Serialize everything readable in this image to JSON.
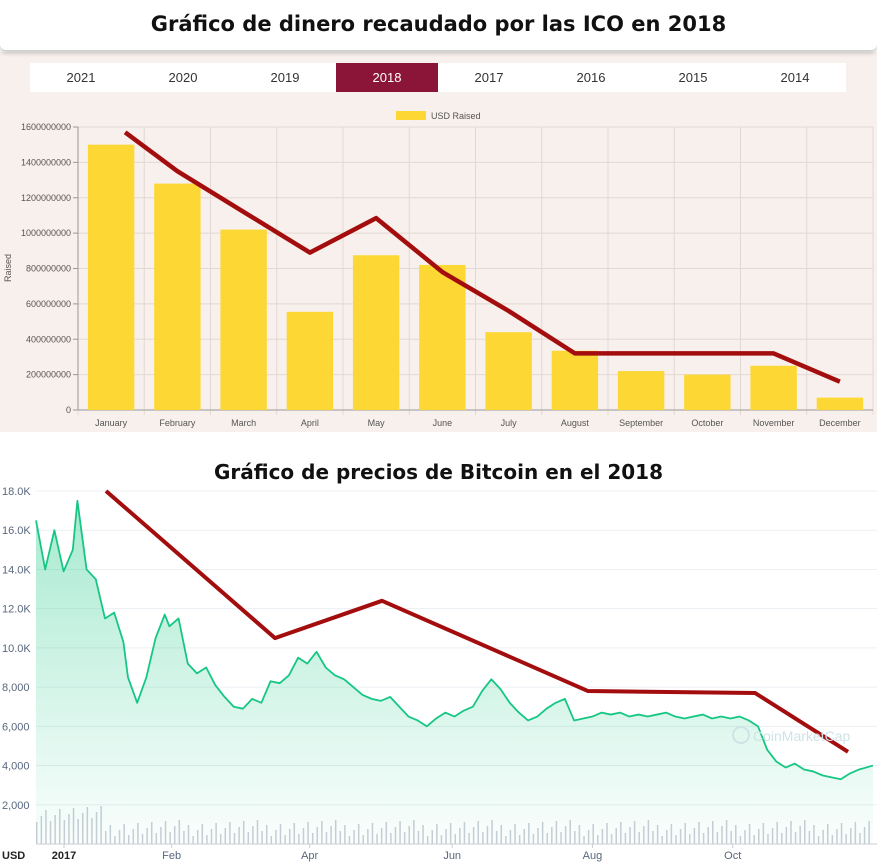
{
  "chart_data": [
    {
      "type": "bar",
      "title": "Gráfico de dinero recaudado por las ICO en 2018",
      "tabs": [
        "2021",
        "2020",
        "2019",
        "2018",
        "2017",
        "2016",
        "2015",
        "2014"
      ],
      "selected_tab": "2018",
      "legend": "USD Raised",
      "legend_position": "top",
      "ylabel": "Raised",
      "categories": [
        "January",
        "February",
        "March",
        "April",
        "May",
        "June",
        "July",
        "August",
        "September",
        "October",
        "November",
        "December"
      ],
      "series": [
        {
          "name": "USD Raised",
          "values": [
            1500000000,
            1280000000,
            1020000000,
            555000000,
            875000000,
            820000000,
            440000000,
            335000000,
            220000000,
            200000000,
            250000000,
            70000000
          ],
          "color": "#fdd835"
        }
      ],
      "trend_line": [
        1570000000,
        1350000000,
        1120000000,
        890000000,
        1085000000,
        780000000,
        560000000,
        320000000,
        320000000,
        320000000,
        320000000,
        160000000
      ],
      "trend_color": "#a30d0d",
      "ylim": [
        0,
        1600000000
      ],
      "yticks": [
        "0",
        "200000000",
        "400000000",
        "600000000",
        "800000000",
        "1000000000",
        "1200000000",
        "1400000000",
        "1600000000"
      ],
      "grid": true,
      "background": "#f8f0ec"
    },
    {
      "type": "line",
      "title": "Gráfico de precios de Bitcoin en el 2018",
      "currency": "USD",
      "x_ticks": [
        "2017",
        "Feb",
        "Apr",
        "Jun",
        "Aug",
        "Oct"
      ],
      "ylim": [
        0,
        18000
      ],
      "yticks": [
        "2,000",
        "4,000",
        "6,000",
        "8,000",
        "10.0K",
        "12.0K",
        "14.0K",
        "16.0K",
        "18.0K"
      ],
      "x": [
        0,
        4,
        8,
        12,
        16,
        18,
        22,
        26,
        30,
        34,
        38,
        40,
        44,
        48,
        52,
        56,
        58,
        62,
        66,
        70,
        74,
        78,
        82,
        86,
        90,
        94,
        98,
        102,
        106,
        110,
        114,
        118,
        122,
        126,
        130,
        134,
        138,
        142,
        146,
        150,
        154,
        158,
        162,
        166,
        170,
        174,
        178,
        182,
        186,
        190,
        194,
        198,
        202,
        206,
        210,
        214,
        218,
        222,
        226,
        230,
        234,
        238,
        242,
        246,
        250,
        254,
        258,
        262,
        266,
        270,
        274,
        278,
        282,
        286,
        290,
        294,
        298,
        302,
        306,
        310,
        314,
        318,
        322,
        326,
        330,
        334,
        338,
        342,
        346,
        350,
        354,
        358,
        364
      ],
      "values": [
        16500,
        14000,
        16000,
        13900,
        15000,
        17500,
        14000,
        13500,
        11500,
        11800,
        10300,
        8500,
        7200,
        8500,
        10500,
        11700,
        11100,
        11500,
        9200,
        8700,
        9000,
        8100,
        7500,
        7000,
        6900,
        7400,
        7200,
        8300,
        8200,
        8600,
        9500,
        9200,
        9800,
        9000,
        8600,
        8400,
        8000,
        7600,
        7400,
        7300,
        7500,
        7000,
        6500,
        6300,
        6000,
        6400,
        6700,
        6500,
        6800,
        7000,
        7800,
        8400,
        7900,
        7200,
        6700,
        6300,
        6500,
        6900,
        7200,
        7400,
        6300,
        6400,
        6500,
        6700,
        6600,
        6700,
        6500,
        6600,
        6500,
        6600,
        6700,
        6500,
        6400,
        6500,
        6600,
        6400,
        6500,
        6400,
        6500,
        6300,
        6000,
        4800,
        4200,
        3900,
        4100,
        3800,
        3700,
        3500,
        3400,
        3300,
        3600,
        3800,
        4000
      ],
      "trend_x": [
        34,
        120,
        175,
        280,
        360
      ],
      "trend_values": [
        18000,
        10500,
        12400,
        7800,
        7700,
        4700
      ],
      "trend_x_full": [
        34,
        120,
        175,
        280,
        360,
        410
      ],
      "line_color": "#16c784",
      "trend_color": "#a30d0d",
      "grid": true
    }
  ],
  "watermark": "CoinMarketCap"
}
